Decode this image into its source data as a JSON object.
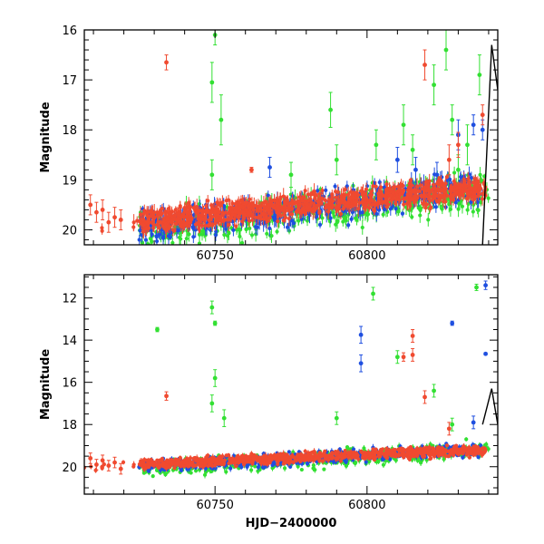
{
  "chart_data": [
    {
      "id": "top",
      "type": "scatter",
      "title": "",
      "xlabel": "",
      "ylabel": "Magnitude",
      "xlim": [
        60707,
        60843
      ],
      "ylim": [
        20.3,
        16
      ],
      "y_inverted": true,
      "xticks": [
        60750,
        60800
      ],
      "yticks": [
        16,
        17,
        18,
        19,
        20
      ],
      "grid": false,
      "legend": "none",
      "colors": {
        "green": "#33e033",
        "blue": "#1f4fe0",
        "red": "#f04a30"
      },
      "series": [
        {
          "color": "green",
          "base": [
            60725,
            60840
          ],
          "trend": [
            20.05,
            19.2
          ],
          "outliers": [
            [
              60750,
              16.1,
              0.2
            ],
            [
              60749,
              17.05,
              0.4
            ],
            [
              60752,
              17.8,
              0.5
            ],
            [
              60749,
              18.9,
              0.3
            ],
            [
              60788,
              17.6,
              0.35
            ],
            [
              60790,
              18.6,
              0.3
            ],
            [
              60812,
              17.9,
              0.4
            ],
            [
              60815,
              18.4,
              0.3
            ],
            [
              60822,
              17.1,
              0.4
            ],
            [
              60826,
              16.4,
              0.4
            ],
            [
              60828,
              17.8,
              0.3
            ],
            [
              60830,
              18.8,
              0.3
            ],
            [
              60833,
              18.3,
              0.4
            ],
            [
              60837,
              16.9,
              0.4
            ],
            [
              60775,
              18.9,
              0.25
            ],
            [
              60803,
              18.3,
              0.3
            ]
          ]
        },
        {
          "color": "blue",
          "base": [
            60725,
            60838
          ],
          "trend": [
            19.95,
            19.15
          ],
          "outliers": [
            [
              60768,
              18.75,
              0.2
            ],
            [
              60810,
              18.6,
              0.25
            ],
            [
              60816,
              18.8,
              0.25
            ],
            [
              60823,
              18.9,
              0.25
            ],
            [
              60830,
              18.1,
              0.3
            ],
            [
              60835,
              17.9,
              0.2
            ],
            [
              60838,
              18.0,
              0.2
            ]
          ]
        },
        {
          "color": "red",
          "base": [
            60707,
            60839
          ],
          "trend": [
            19.95,
            19.15
          ],
          "outliers": [
            [
              60734,
              16.65,
              0.15
            ],
            [
              60819,
              16.7,
              0.3
            ],
            [
              60762,
              18.8,
              0.05
            ],
            [
              60820,
              19.2,
              0.2
            ],
            [
              60827,
              18.6,
              0.3
            ],
            [
              60830,
              18.3,
              0.25
            ],
            [
              60838,
              17.7,
              0.2
            ],
            [
              60709,
              19.5,
              0.2
            ],
            [
              60711,
              19.65,
              0.2
            ],
            [
              60713,
              19.6,
              0.2
            ],
            [
              60715,
              19.85,
              0.2
            ],
            [
              60717,
              19.75,
              0.2
            ],
            [
              60719,
              19.8,
              0.2
            ]
          ]
        }
      ],
      "model_curve": [
        [
          60838,
          20.3
        ],
        [
          60841,
          16.3
        ],
        [
          60843,
          17.2
        ]
      ]
    },
    {
      "id": "bottom",
      "type": "scatter",
      "title": "",
      "xlabel": "HJD−2400000",
      "ylabel": "Magnitude",
      "xlim": [
        60707,
        60843
      ],
      "ylim": [
        21.3,
        10.9
      ],
      "y_inverted": true,
      "xticks": [
        60750,
        60800
      ],
      "yticks": [
        12,
        14,
        16,
        18,
        20
      ],
      "grid": false,
      "legend": "none",
      "colors": {
        "green": "#33e033",
        "blue": "#1f4fe0",
        "red": "#f04a30"
      },
      "series": [
        {
          "color": "green",
          "base": [
            60725,
            60840
          ],
          "trend": [
            20.1,
            19.2
          ],
          "outliers": [
            [
              60731,
              13.5,
              0.1
            ],
            [
              60749,
              12.45,
              0.3
            ],
            [
              60750,
              13.2,
              0.1
            ],
            [
              60750,
              15.8,
              0.4
            ],
            [
              60749,
              17.0,
              0.4
            ],
            [
              60753,
              17.7,
              0.4
            ],
            [
              60790,
              17.7,
              0.3
            ],
            [
              60802,
              11.8,
              0.3
            ],
            [
              60810,
              14.8,
              0.3
            ],
            [
              60822,
              16.4,
              0.3
            ],
            [
              60836,
              11.5,
              0.15
            ],
            [
              60828,
              18.0,
              0.3
            ]
          ]
        },
        {
          "color": "blue",
          "base": [
            60725,
            60838
          ],
          "trend": [
            20.0,
            19.2
          ],
          "outliers": [
            [
              60798,
              13.75,
              0.4
            ],
            [
              60798,
              15.1,
              0.4
            ],
            [
              60828,
              13.2,
              0.1
            ],
            [
              60839,
              11.4,
              0.2
            ],
            [
              60839,
              14.65,
              0.05
            ],
            [
              60835,
              17.9,
              0.3
            ]
          ]
        },
        {
          "color": "red",
          "base": [
            60707,
            60839
          ],
          "trend": [
            20.0,
            19.2
          ],
          "outliers": [
            [
              60734,
              16.65,
              0.2
            ],
            [
              60812,
              14.8,
              0.2
            ],
            [
              60815,
              13.8,
              0.3
            ],
            [
              60815,
              14.7,
              0.3
            ],
            [
              60819,
              16.7,
              0.3
            ],
            [
              60827,
              18.2,
              0.3
            ],
            [
              60709,
              19.6,
              0.25
            ],
            [
              60711,
              19.9,
              0.25
            ],
            [
              60713,
              19.7,
              0.25
            ],
            [
              60715,
              19.95,
              0.25
            ],
            [
              60717,
              19.8,
              0.25
            ],
            [
              60719,
              20.1,
              0.25
            ]
          ]
        }
      ],
      "model_curve": [
        [
          60838,
          18.0
        ],
        [
          60841,
          16.3
        ],
        [
          60843,
          18.0
        ]
      ]
    }
  ]
}
